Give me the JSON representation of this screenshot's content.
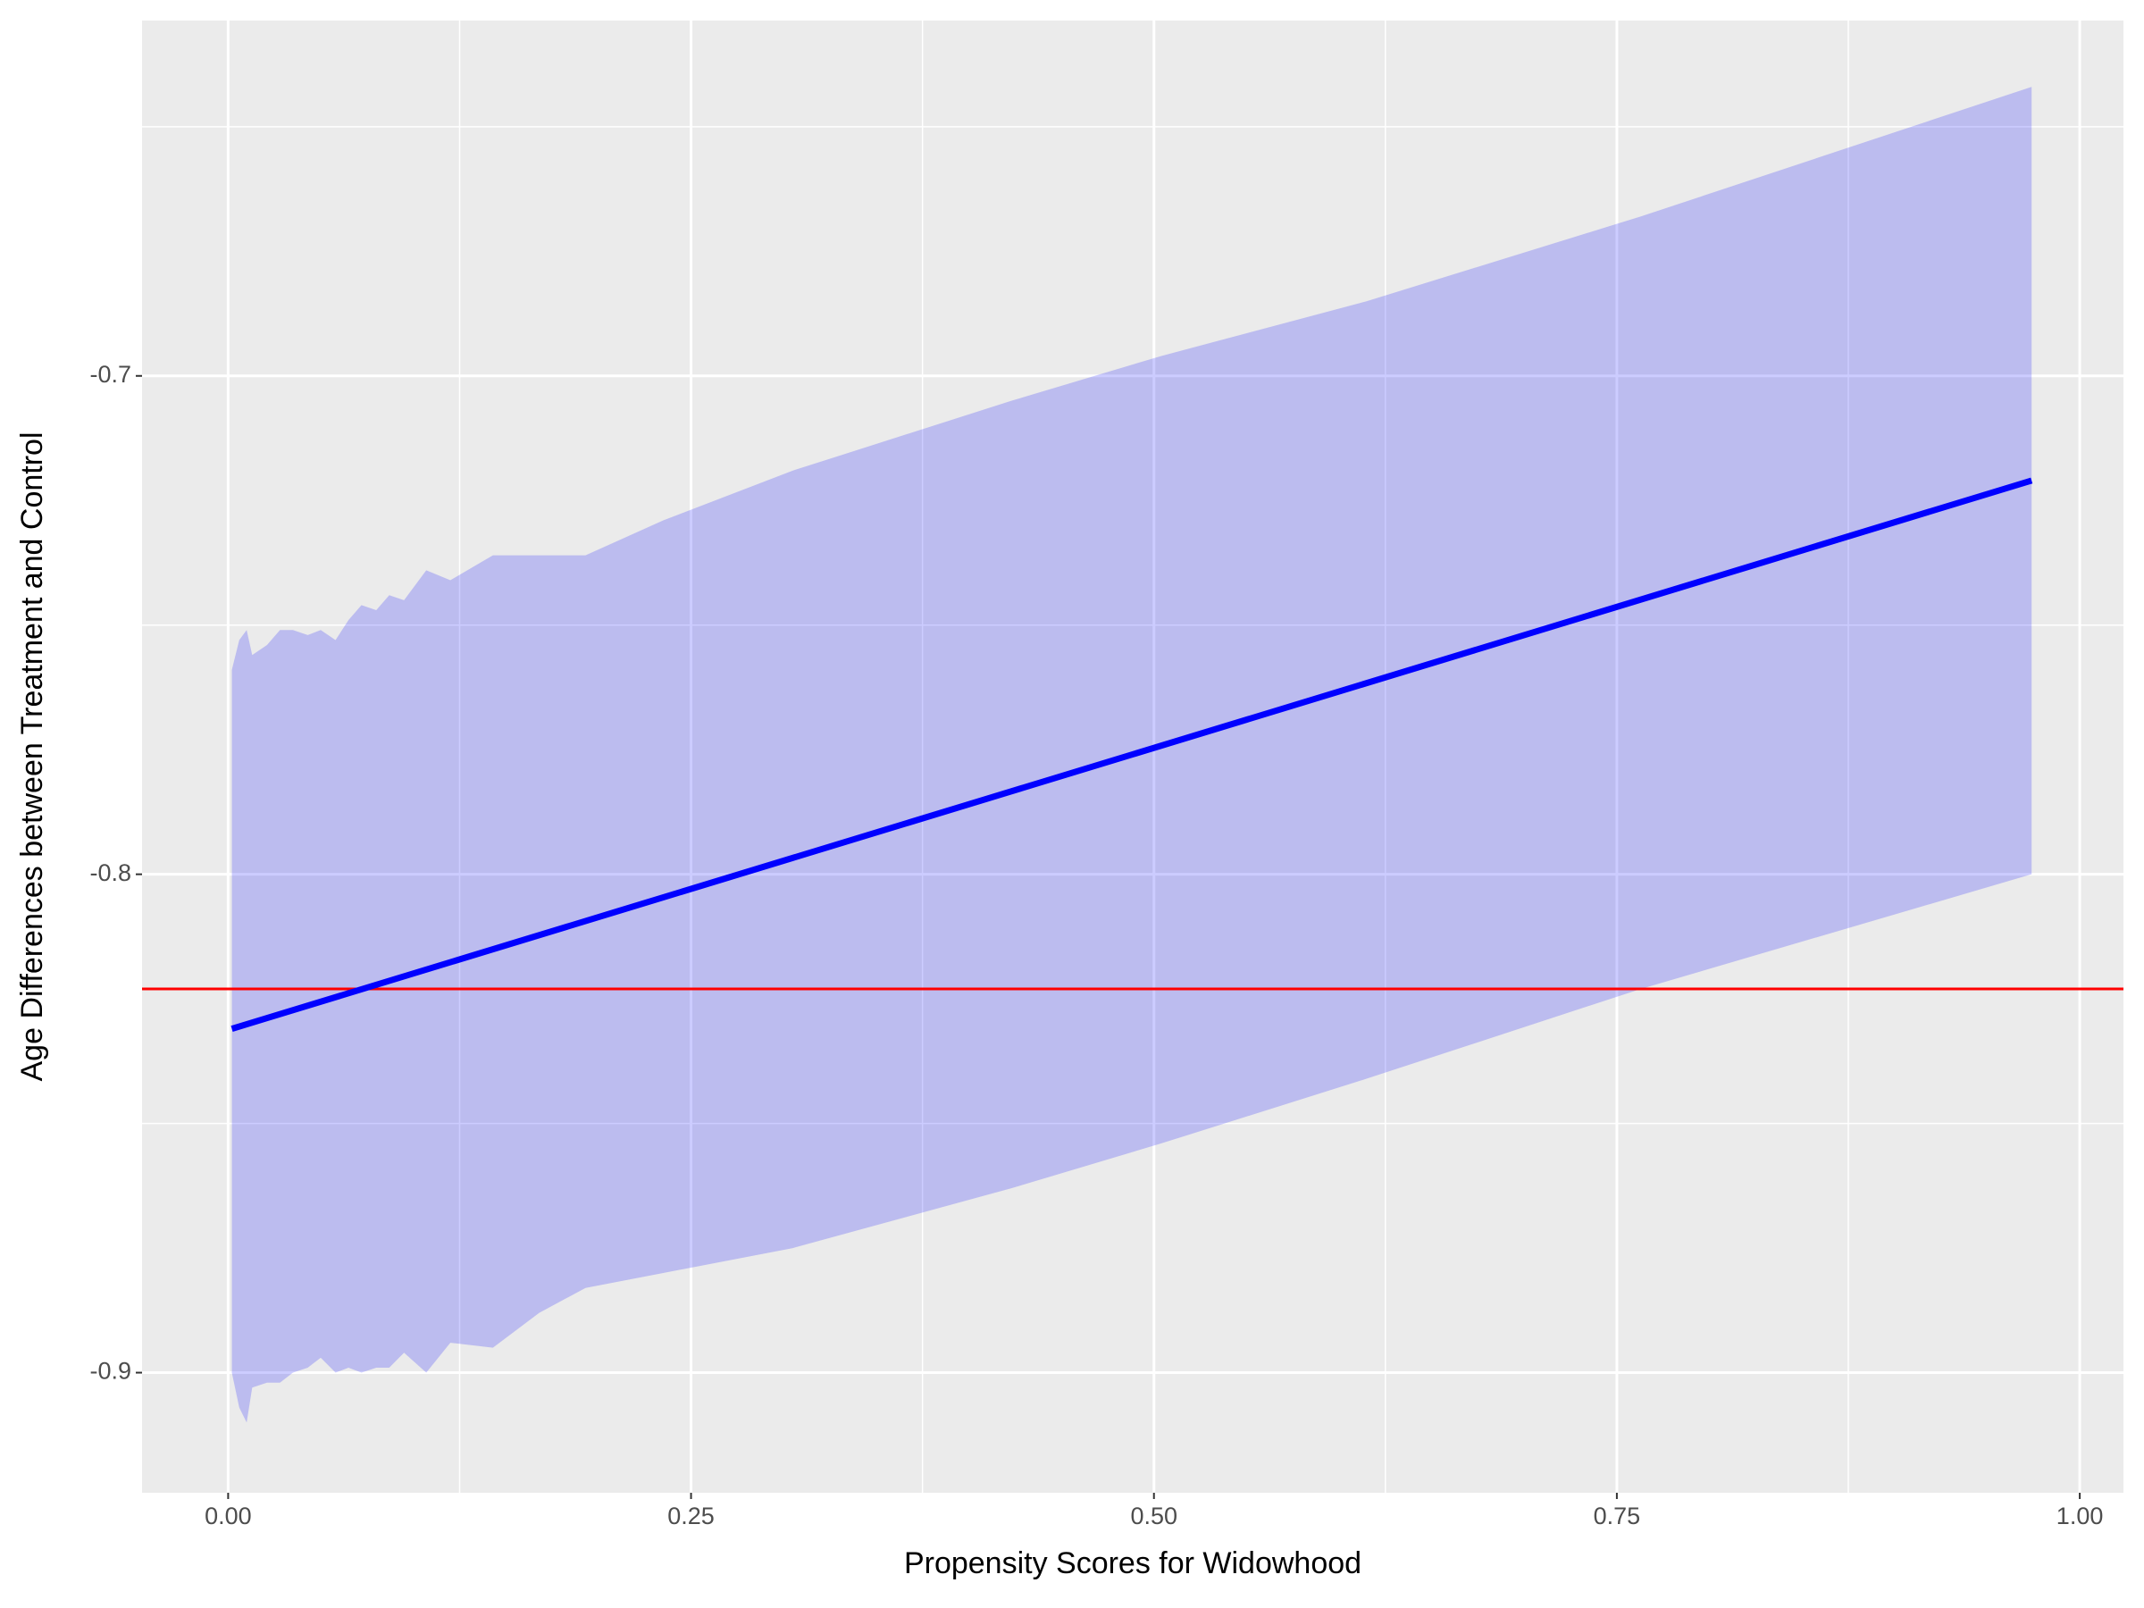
{
  "chart_data": {
    "type": "line",
    "x_label": "Propensity Scores for Widowhood",
    "y_label": "Age Differences between Treatment and Control",
    "xlim": [
      -0.0465,
      1.0236
    ],
    "ylim": [
      -0.9241,
      -0.6287
    ],
    "xticks": [
      {
        "value": 0,
        "label": "0.00"
      },
      {
        "value": 0.25,
        "label": "0.25"
      },
      {
        "value": 0.5,
        "label": "0.50"
      },
      {
        "value": 0.75,
        "label": "0.75"
      },
      {
        "value": 1,
        "label": "1.00"
      }
    ],
    "yticks": [
      -0.9,
      -0.8,
      -0.7
    ],
    "xminor": [
      0.125,
      0.375,
      0.625,
      0.875
    ],
    "yminor": [
      -0.85,
      -0.75,
      -0.65
    ],
    "grid": true,
    "ribbon": {
      "color": "#0000ff",
      "opacity": 0.2,
      "x": [
        0.002,
        0.006,
        0.01,
        0.013,
        0.021,
        0.028,
        0.035,
        0.043,
        0.05,
        0.058,
        0.065,
        0.072,
        0.08,
        0.087,
        0.095,
        0.107,
        0.12,
        0.143,
        0.168,
        0.193,
        0.235,
        0.305,
        0.423,
        0.504,
        0.615,
        0.763,
        0.974
      ],
      "ymax": [
        -0.759,
        -0.753,
        -0.751,
        -0.756,
        -0.754,
        -0.751,
        -0.751,
        -0.752,
        -0.751,
        -0.753,
        -0.749,
        -0.746,
        -0.747,
        -0.744,
        -0.745,
        -0.739,
        -0.741,
        -0.736,
        -0.736,
        -0.736,
        -0.729,
        -0.719,
        -0.705,
        -0.696,
        -0.685,
        -0.668,
        -0.642
      ],
      "ymin": [
        -0.9,
        -0.907,
        -0.91,
        -0.903,
        -0.902,
        -0.902,
        -0.9,
        -0.899,
        -0.897,
        -0.9,
        -0.899,
        -0.9,
        -0.899,
        -0.899,
        -0.896,
        -0.9,
        -0.894,
        -0.895,
        -0.888,
        -0.883,
        -0.88,
        -0.875,
        -0.863,
        -0.854,
        -0.841,
        -0.823,
        -0.8
      ]
    },
    "line": {
      "color": "#0000ff",
      "x": [
        0.002,
        0.974
      ],
      "values": [
        -0.831,
        -0.721
      ]
    },
    "hline": {
      "color": "#ff0000",
      "value": -0.823
    }
  }
}
